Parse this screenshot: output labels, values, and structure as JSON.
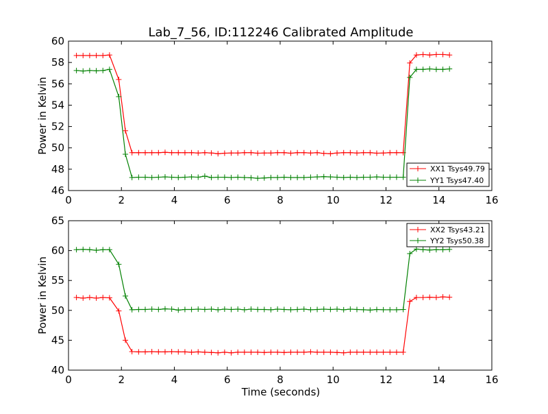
{
  "chart_data": {
    "title": "Lab_7_56, ID:112246 Calibrated Amplitude",
    "xlabel": "Time (seconds)",
    "ylabel": "Power in Kelvin",
    "x": [
      0.3,
      0.55,
      0.8,
      1.05,
      1.3,
      1.55,
      1.9,
      2.15,
      2.4,
      2.65,
      2.9,
      3.15,
      3.4,
      3.65,
      3.9,
      4.15,
      4.4,
      4.65,
      4.9,
      5.15,
      5.4,
      5.65,
      5.9,
      6.15,
      6.4,
      6.65,
      6.9,
      7.15,
      7.4,
      7.65,
      7.9,
      8.15,
      8.4,
      8.65,
      8.9,
      9.15,
      9.4,
      9.65,
      9.9,
      10.15,
      10.4,
      10.65,
      10.9,
      11.15,
      11.4,
      11.65,
      11.9,
      12.15,
      12.4,
      12.65,
      12.9,
      13.15,
      13.4,
      13.65,
      13.9,
      14.15,
      14.4
    ],
    "charts": [
      {
        "type": "line",
        "xlim": [
          0,
          16
        ],
        "ylim": [
          46,
          60
        ],
        "xticks": [
          0,
          2,
          4,
          6,
          8,
          10,
          12,
          14,
          16
        ],
        "yticks": [
          46,
          48,
          50,
          52,
          54,
          56,
          58,
          60
        ],
        "legend_position": "lower-right",
        "series": [
          {
            "name": "XX1 Tsys49.79",
            "color": "#ff0000",
            "values": [
              58.65,
              58.65,
              58.65,
              58.65,
              58.65,
              58.7,
              56.4,
              51.6,
              49.55,
              49.55,
              49.55,
              49.55,
              49.55,
              49.58,
              49.55,
              49.55,
              49.55,
              49.55,
              49.52,
              49.55,
              49.52,
              49.45,
              49.5,
              49.52,
              49.52,
              49.55,
              49.55,
              49.5,
              49.52,
              49.52,
              49.55,
              49.55,
              49.5,
              49.55,
              49.55,
              49.52,
              49.55,
              49.48,
              49.45,
              49.52,
              49.55,
              49.55,
              49.52,
              49.55,
              49.55,
              49.5,
              49.52,
              49.55,
              49.55,
              49.55,
              57.95,
              58.7,
              58.75,
              58.7,
              58.75,
              58.75,
              58.7
            ]
          },
          {
            "name": "YY1 Tsys47.40",
            "color": "#008000",
            "values": [
              57.25,
              57.2,
              57.25,
              57.22,
              57.25,
              57.35,
              54.8,
              49.4,
              47.22,
              47.25,
              47.25,
              47.22,
              47.25,
              47.28,
              47.25,
              47.22,
              47.25,
              47.28,
              47.25,
              47.35,
              47.22,
              47.25,
              47.25,
              47.22,
              47.25,
              47.22,
              47.2,
              47.15,
              47.18,
              47.22,
              47.22,
              47.25,
              47.22,
              47.22,
              47.22,
              47.25,
              47.28,
              47.3,
              47.28,
              47.25,
              47.22,
              47.25,
              47.22,
              47.25,
              47.25,
              47.28,
              47.25,
              47.25,
              47.25,
              47.25,
              56.6,
              57.35,
              57.35,
              57.4,
              57.35,
              57.35,
              57.4
            ]
          }
        ]
      },
      {
        "type": "line",
        "xlim": [
          0,
          16
        ],
        "ylim": [
          40,
          65
        ],
        "xticks": [
          0,
          2,
          4,
          6,
          8,
          10,
          12,
          14,
          16
        ],
        "yticks": [
          40,
          45,
          50,
          55,
          60,
          65
        ],
        "legend_position": "top-right",
        "series": [
          {
            "name": "XX2 Tsys43.21",
            "color": "#ff0000",
            "values": [
              52.15,
              52.05,
              52.15,
              52.05,
              52.15,
              52.1,
              49.9,
              45.0,
              43.1,
              43.05,
              43.05,
              43.1,
              43.05,
              43.05,
              43.1,
              43.05,
              43.05,
              43.0,
              43.05,
              43.0,
              42.95,
              42.9,
              43.0,
              42.9,
              43.0,
              43.0,
              43.0,
              43.0,
              42.95,
              43.0,
              43.0,
              42.95,
              43.0,
              43.0,
              43.0,
              43.05,
              43.0,
              43.0,
              43.0,
              42.95,
              42.9,
              43.0,
              43.0,
              43.0,
              43.0,
              43.0,
              43.0,
              43.0,
              43.0,
              43.0,
              51.5,
              52.15,
              52.15,
              52.2,
              52.15,
              52.25,
              52.2
            ]
          },
          {
            "name": "YY2 Tsys50.38",
            "color": "#008000",
            "values": [
              60.15,
              60.2,
              60.15,
              60.05,
              60.15,
              60.15,
              57.7,
              52.4,
              50.1,
              50.15,
              50.15,
              50.2,
              50.15,
              50.25,
              50.2,
              50.05,
              50.15,
              50.15,
              50.2,
              50.15,
              50.2,
              50.1,
              50.2,
              50.15,
              50.2,
              50.1,
              50.2,
              50.15,
              50.15,
              50.1,
              50.2,
              50.15,
              50.1,
              50.15,
              50.2,
              50.1,
              50.15,
              50.2,
              50.15,
              50.2,
              50.1,
              50.2,
              50.15,
              50.1,
              50.05,
              50.15,
              50.1,
              50.1,
              50.1,
              50.15,
              59.5,
              60.25,
              60.15,
              60.1,
              60.15,
              60.15,
              60.2
            ]
          }
        ]
      }
    ]
  }
}
